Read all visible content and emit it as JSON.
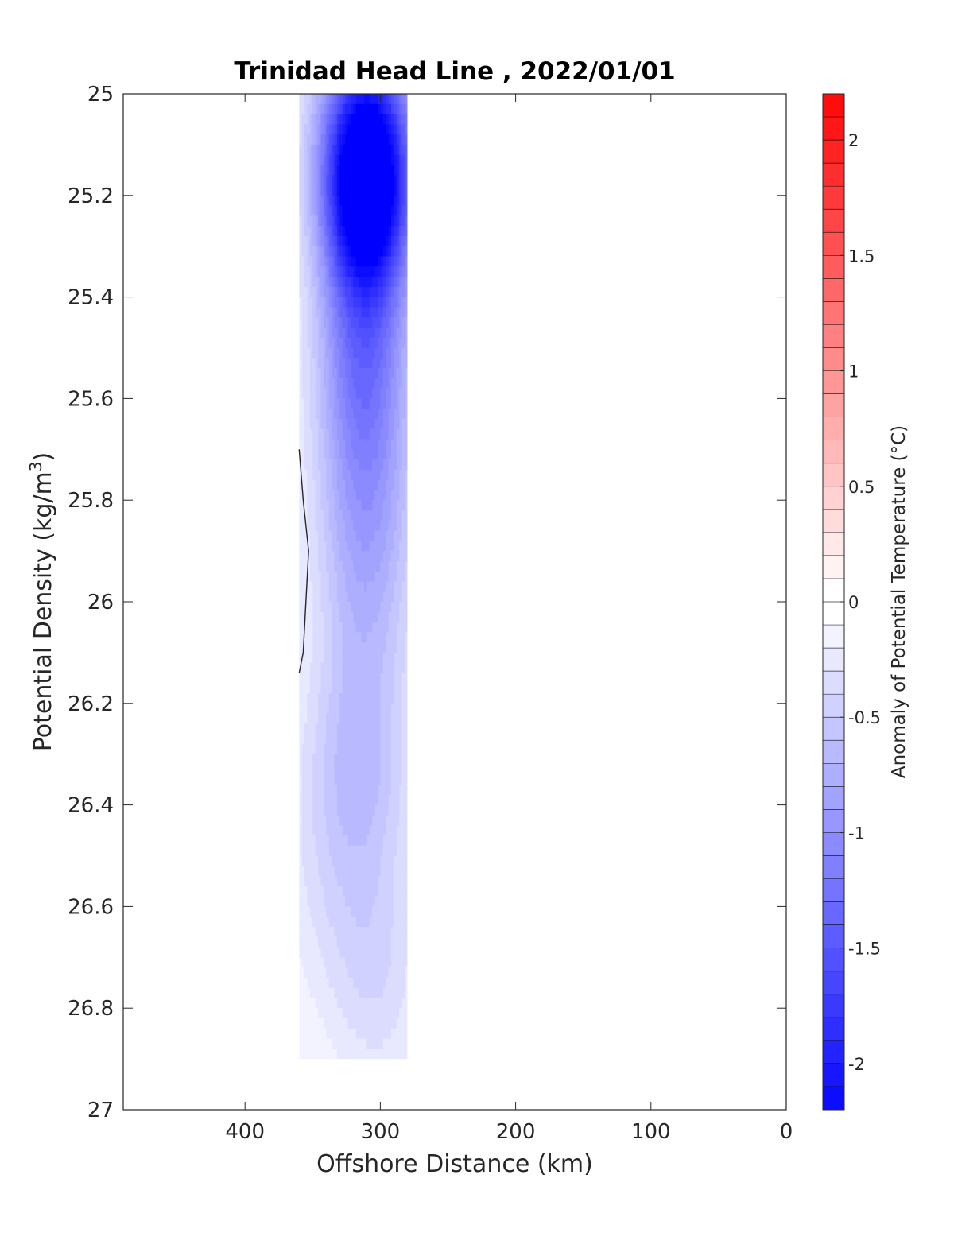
{
  "chart_data": {
    "type": "heatmap",
    "title": "Trinidad Head Line , 2022/01/01",
    "xlabel": "Offshore Distance (km)",
    "ylabel": "Potential Density (kg/m",
    "ylabel_sup": "3",
    "ylabel_close": ")",
    "xlim": [
      490,
      0
    ],
    "ylim": [
      25,
      27
    ],
    "x_reversed": true,
    "y_reversed": true,
    "xticks": [
      400,
      300,
      200,
      100,
      0
    ],
    "xtick_labels": [
      "400",
      "300",
      "200",
      "100",
      "0"
    ],
    "yticks": [
      25,
      25.2,
      25.4,
      25.6,
      25.8,
      26,
      26.2,
      26.4,
      26.6,
      26.8,
      27
    ],
    "ytick_labels": [
      "25",
      "25.2",
      "25.4",
      "25.6",
      "25.8",
      "26",
      "26.2",
      "26.4",
      "26.6",
      "26.8",
      "27"
    ],
    "colorbar": {
      "label": "Anomaly of Potential Temperature (°C)",
      "range": [
        -2.2,
        2.2
      ],
      "step": 0.1,
      "ticks": [
        2,
        1.5,
        1,
        0.5,
        0,
        -0.5,
        -1,
        -1.5,
        -2
      ],
      "tick_labels": [
        "2",
        "1.5",
        "1",
        "0.5",
        "0",
        "-0.5",
        "-1",
        "-1.5",
        "-2"
      ],
      "low_color": "#0000ff",
      "mid_color": "#ffffff",
      "high_color": "#ff0000"
    },
    "data_extent": {
      "x": [
        360,
        280
      ],
      "y": [
        25,
        26.9
      ]
    },
    "anomaly_field": [
      {
        "x": 310,
        "y": 25.2,
        "value": -1.9,
        "sx": 32,
        "sy": 0.2
      },
      {
        "x": 310,
        "y": 25.05,
        "value": -1.3,
        "sx": 36,
        "sy": 0.25
      },
      {
        "x": 312,
        "y": 25.5,
        "value": -1.0,
        "sx": 35,
        "sy": 0.25
      },
      {
        "x": 310,
        "y": 25.85,
        "value": -0.75,
        "sx": 38,
        "sy": 0.3
      },
      {
        "x": 315,
        "y": 26.3,
        "value": -0.45,
        "sx": 40,
        "sy": 0.25
      },
      {
        "x": 330,
        "y": 26.55,
        "value": -0.25,
        "sx": 45,
        "sy": 0.3
      },
      {
        "x": 300,
        "y": 26.75,
        "value": -0.25,
        "sx": 35,
        "sy": 0.25
      }
    ],
    "contour_line": {
      "value": 0,
      "x": [
        360,
        357,
        353,
        355,
        357,
        360
      ],
      "y": [
        25.7,
        25.8,
        25.9,
        26.0,
        26.1,
        26.14
      ]
    }
  }
}
